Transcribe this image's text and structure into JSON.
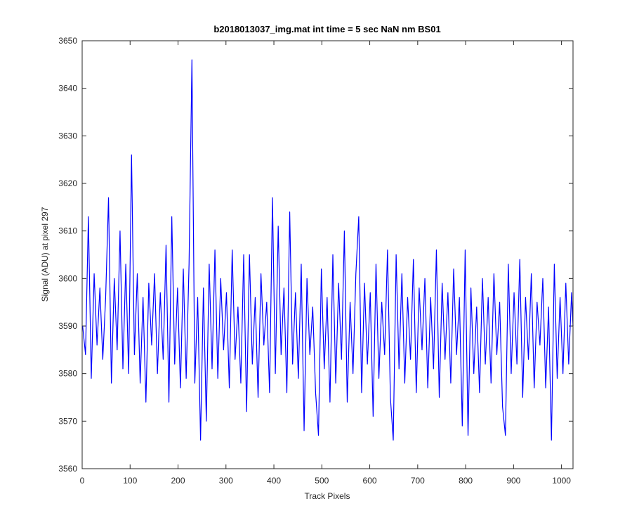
{
  "chart_data": {
    "type": "line",
    "title": "b2018013037_img.mat int time = 5 sec  NaN nm BS01",
    "x_label": "Track Pixels",
    "y_label": "Signal (ADU) at pixel 297",
    "color": "#0000ff",
    "xlim": [
      0,
      1024
    ],
    "ylim": [
      3560,
      3650
    ],
    "xticks": [
      0,
      100,
      200,
      300,
      400,
      500,
      600,
      700,
      800,
      900,
      1000
    ],
    "yticks": [
      3560,
      3570,
      3580,
      3590,
      3600,
      3610,
      3620,
      3630,
      3640,
      3650
    ],
    "x": [
      1,
      7,
      13,
      19,
      25,
      31,
      37,
      43,
      49,
      55,
      61,
      67,
      73,
      79,
      85,
      91,
      97,
      103,
      109,
      115,
      121,
      127,
      133,
      139,
      145,
      151,
      157,
      163,
      169,
      175,
      181,
      187,
      193,
      199,
      205,
      211,
      217,
      223,
      229,
      235,
      241,
      247,
      253,
      259,
      265,
      271,
      277,
      283,
      289,
      295,
      301,
      307,
      313,
      319,
      325,
      331,
      337,
      343,
      349,
      355,
      361,
      367,
      373,
      379,
      385,
      391,
      397,
      403,
      409,
      415,
      421,
      427,
      433,
      439,
      445,
      451,
      457,
      463,
      469,
      475,
      481,
      487,
      493,
      499,
      505,
      511,
      517,
      523,
      529,
      535,
      541,
      547,
      553,
      559,
      565,
      571,
      577,
      583,
      589,
      595,
      601,
      607,
      613,
      619,
      625,
      631,
      637,
      643,
      649,
      655,
      661,
      667,
      673,
      679,
      685,
      691,
      697,
      703,
      709,
      715,
      721,
      727,
      733,
      739,
      745,
      751,
      757,
      763,
      769,
      775,
      781,
      787,
      793,
      799,
      805,
      811,
      817,
      823,
      829,
      835,
      841,
      847,
      853,
      859,
      865,
      871,
      877,
      883,
      889,
      895,
      901,
      907,
      913,
      919,
      925,
      931,
      937,
      943,
      949,
      955,
      961,
      967,
      973,
      979,
      985,
      991,
      997,
      1003,
      1009,
      1015,
      1021,
      1024
    ],
    "values": [
      3590,
      3584,
      3613,
      3579,
      3601,
      3586,
      3598,
      3583,
      3596,
      3617,
      3578,
      3600,
      3585,
      3610,
      3581,
      3603,
      3580,
      3626,
      3584,
      3601,
      3578,
      3596,
      3574,
      3599,
      3586,
      3601,
      3580,
      3597,
      3583,
      3607,
      3574,
      3613,
      3582,
      3598,
      3577,
      3602,
      3579,
      3603,
      3646,
      3578,
      3596,
      3566,
      3598,
      3570,
      3603,
      3581,
      3606,
      3579,
      3600,
      3585,
      3597,
      3577,
      3606,
      3583,
      3594,
      3578,
      3605,
      3572,
      3605,
      3582,
      3596,
      3575,
      3601,
      3586,
      3595,
      3576,
      3617,
      3580,
      3611,
      3584,
      3598,
      3576,
      3614,
      3582,
      3597,
      3579,
      3603,
      3568,
      3600,
      3584,
      3594,
      3576,
      3567,
      3602,
      3581,
      3596,
      3574,
      3605,
      3578,
      3599,
      3583,
      3610,
      3574,
      3595,
      3580,
      3601,
      3613,
      3576,
      3599,
      3582,
      3597,
      3571,
      3603,
      3579,
      3595,
      3584,
      3606,
      3575,
      3566,
      3605,
      3581,
      3601,
      3578,
      3596,
      3583,
      3604,
      3576,
      3598,
      3585,
      3600,
      3577,
      3596,
      3581,
      3606,
      3575,
      3599,
      3583,
      3597,
      3578,
      3602,
      3584,
      3596,
      3569,
      3606,
      3567,
      3598,
      3580,
      3594,
      3576,
      3600,
      3582,
      3596,
      3578,
      3601,
      3584,
      3595,
      3573,
      3567,
      3603,
      3580,
      3597,
      3582,
      3604,
      3575,
      3596,
      3583,
      3601,
      3577,
      3595,
      3586,
      3600,
      3577,
      3594,
      3566,
      3603,
      3579,
      3596,
      3580,
      3599,
      3582,
      3597,
      3590
    ]
  }
}
